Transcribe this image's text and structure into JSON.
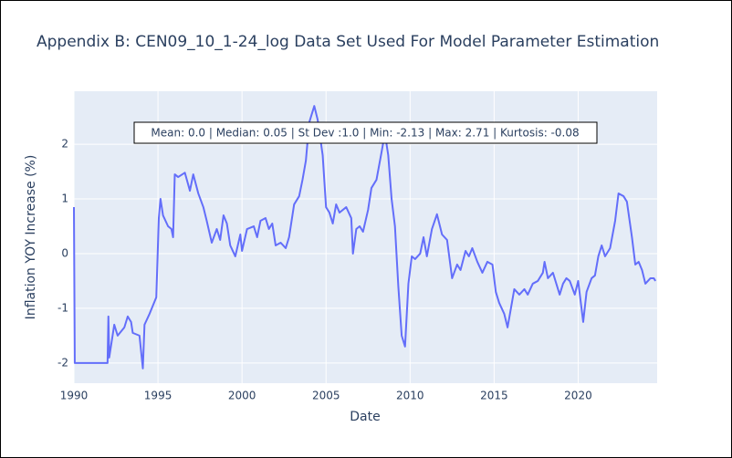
{
  "chart_data": {
    "type": "line",
    "title": "Appendix B: CEN09_10_1-24_log Data Set Used For Model Parameter Estimation",
    "x_label": "Date",
    "y_label": "Inflation YOY Increase (%)",
    "annotation": "Mean: 0.0 | Median: 0.05 | St Dev :1.0 | Min: -2.13 | Max: 2.71 | Kurtosis: -0.08",
    "xlim": [
      1990,
      2024.7
    ],
    "ylim": [
      -2.37,
      2.97
    ],
    "xticks": [
      1990,
      1995,
      2000,
      2005,
      2010,
      2015,
      2020
    ],
    "yticks": [
      -2,
      -1,
      0,
      1,
      2
    ],
    "grid": true,
    "series": [
      {
        "color": "#636efa",
        "x": [
          1990,
          1990.05,
          1992,
          1992.05,
          1992.1,
          1992.4,
          1992.6,
          1993,
          1993.2,
          1993.4,
          1993.5,
          1993.9,
          1994.1,
          1994.2,
          1994.5,
          1994.9,
          1995.05,
          1995.15,
          1995.3,
          1995.6,
          1995.8,
          1995.9,
          1996,
          1996.2,
          1996.6,
          1996.9,
          1997.1,
          1997.4,
          1997.7,
          1997.9,
          1998.2,
          1998.5,
          1998.7,
          1998.9,
          1999.1,
          1999.3,
          1999.6,
          1999.9,
          2000,
          2000.3,
          2000.7,
          2000.9,
          2001.1,
          2001.4,
          2001.6,
          2001.8,
          2002,
          2002.3,
          2002.6,
          2002.8,
          2003.1,
          2003.4,
          2003.6,
          2003.8,
          2004,
          2004.3,
          2004.5,
          2004.8,
          2005,
          2005.2,
          2005.4,
          2005.6,
          2005.8,
          2006.2,
          2006.5,
          2006.6,
          2006.8,
          2007,
          2007.2,
          2007.5,
          2007.7,
          2008,
          2008.3,
          2008.5,
          2008.7,
          2008.9,
          2009.1,
          2009.3,
          2009.5,
          2009.7,
          2009.9,
          2010.1,
          2010.3,
          2010.6,
          2010.8,
          2011,
          2011.3,
          2011.6,
          2011.9,
          2012.2,
          2012.5,
          2012.8,
          2013,
          2013.3,
          2013.5,
          2013.7,
          2014,
          2014.3,
          2014.6,
          2014.9,
          2015.1,
          2015.3,
          2015.6,
          2015.8,
          2016,
          2016.2,
          2016.5,
          2016.8,
          2017,
          2017.3,
          2017.6,
          2017.9,
          2018,
          2018.2,
          2018.5,
          2018.7,
          2018.9,
          2019.1,
          2019.3,
          2019.5,
          2019.8,
          2020,
          2020.3,
          2020.5,
          2020.8,
          2021,
          2021.2,
          2021.4,
          2021.6,
          2021.9,
          2022.2,
          2022.4,
          2022.7,
          2022.9,
          2023.2,
          2023.4,
          2023.6,
          2023.8,
          2024,
          2024.3,
          2024.5,
          2024.6
        ],
        "values": [
          0.85,
          -2,
          -2,
          -1.15,
          -1.9,
          -1.3,
          -1.5,
          -1.35,
          -1.15,
          -1.25,
          -1.45,
          -1.5,
          -2.1,
          -1.3,
          -1.1,
          -0.8,
          0.65,
          1.0,
          0.7,
          0.5,
          0.45,
          0.3,
          1.45,
          1.4,
          1.48,
          1.15,
          1.45,
          1.1,
          0.85,
          0.6,
          0.2,
          0.45,
          0.25,
          0.7,
          0.55,
          0.15,
          -0.05,
          0.35,
          0.05,
          0.45,
          0.5,
          0.3,
          0.6,
          0.65,
          0.45,
          0.55,
          0.15,
          0.2,
          0.1,
          0.3,
          0.9,
          1.05,
          1.35,
          1.7,
          2.4,
          2.7,
          2.45,
          1.8,
          0.85,
          0.75,
          0.55,
          0.9,
          0.75,
          0.85,
          0.65,
          0.0,
          0.45,
          0.5,
          0.4,
          0.8,
          1.2,
          1.35,
          1.85,
          2.2,
          1.8,
          1.0,
          0.5,
          -0.6,
          -1.5,
          -1.7,
          -0.55,
          -0.05,
          -0.1,
          0.0,
          0.3,
          -0.05,
          0.45,
          0.72,
          0.35,
          0.25,
          -0.45,
          -0.2,
          -0.3,
          0.05,
          -0.05,
          0.1,
          -0.15,
          -0.35,
          -0.15,
          -0.2,
          -0.7,
          -0.9,
          -1.1,
          -1.35,
          -1.0,
          -0.65,
          -0.75,
          -0.65,
          -0.75,
          -0.55,
          -0.5,
          -0.35,
          -0.15,
          -0.45,
          -0.35,
          -0.55,
          -0.75,
          -0.55,
          -0.45,
          -0.5,
          -0.75,
          -0.5,
          -1.25,
          -0.7,
          -0.45,
          -0.4,
          -0.05,
          0.15,
          -0.05,
          0.1,
          0.6,
          1.1,
          1.05,
          0.95,
          0.3,
          -0.2,
          -0.15,
          -0.3,
          -0.55,
          -0.45,
          -0.45,
          -0.5
        ]
      }
    ]
  }
}
